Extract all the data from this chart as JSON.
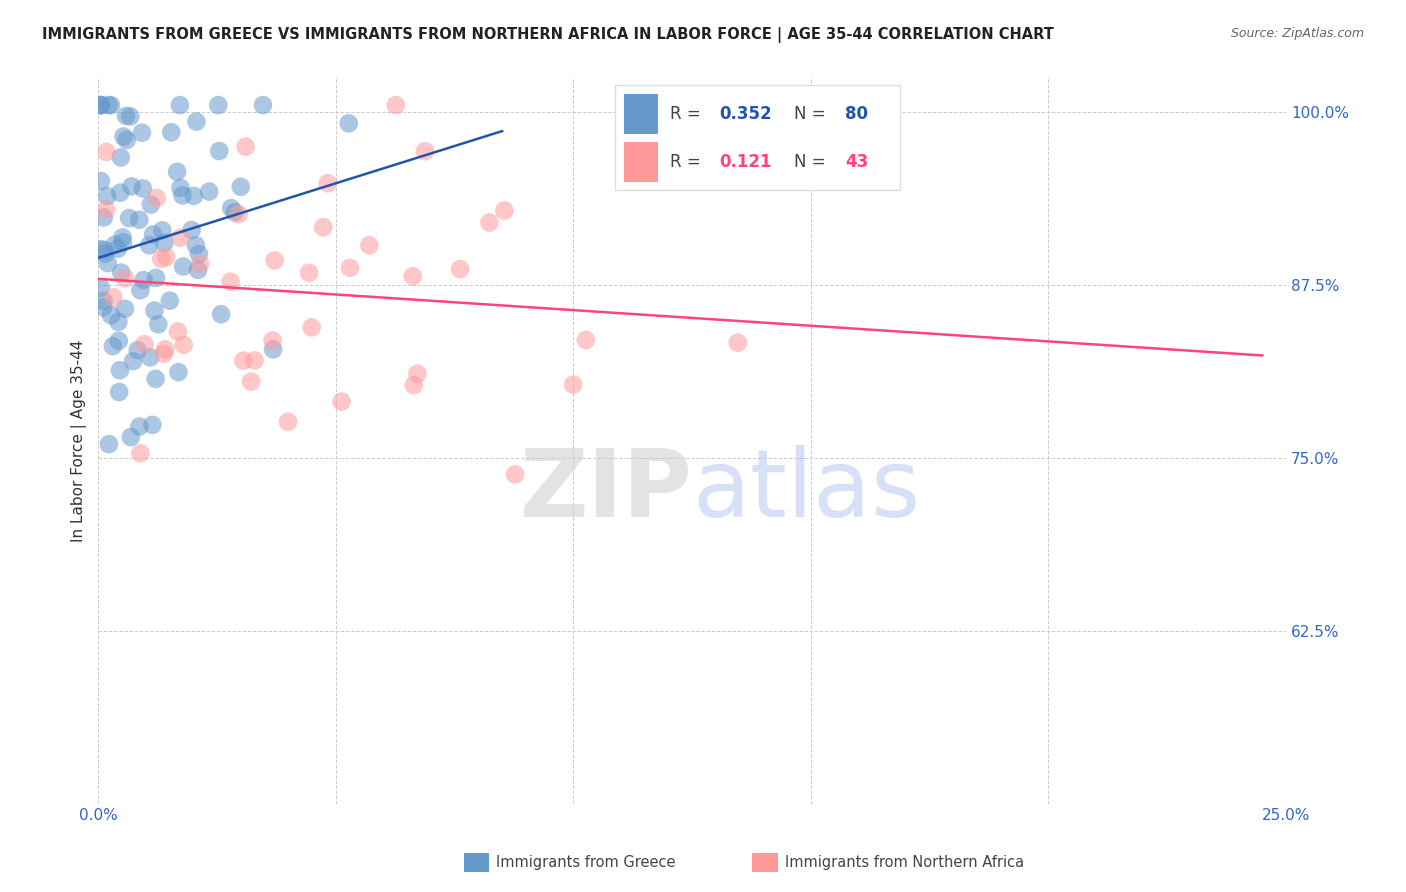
{
  "title": "IMMIGRANTS FROM GREECE VS IMMIGRANTS FROM NORTHERN AFRICA IN LABOR FORCE | AGE 35-44 CORRELATION CHART",
  "source": "Source: ZipAtlas.com",
  "ylabel": "In Labor Force | Age 35-44",
  "xlim": [
    0.0,
    0.25
  ],
  "ylim": [
    0.5,
    1.025
  ],
  "R_greece": 0.352,
  "N_greece": 80,
  "R_africa": 0.121,
  "N_africa": 43,
  "color_greece": "#6699CC",
  "color_africa": "#FF9999",
  "trendline_greece_color": "#2255AA",
  "trendline_africa_color": "#FF4477",
  "legend_label_greece": "Immigrants from Greece",
  "legend_label_africa": "Immigrants from Northern Africa",
  "watermark_color_ZIP": "#CCCCCC",
  "watermark_color_atlas": "#AABBEE",
  "tick_color": "#3366CC",
  "title_color": "#222222",
  "source_color": "#666666"
}
